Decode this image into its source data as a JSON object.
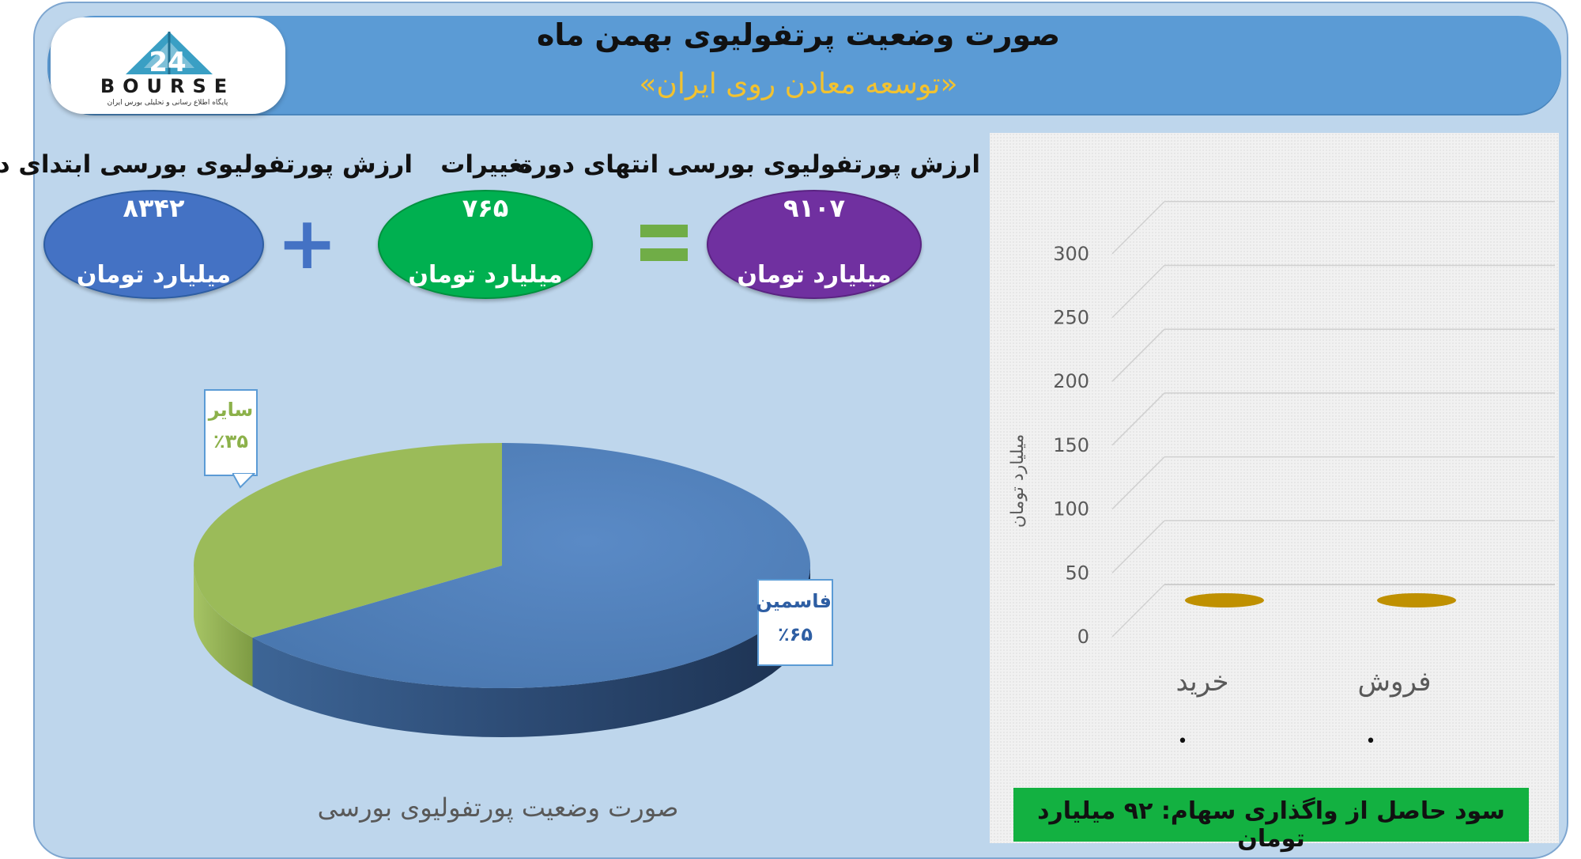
{
  "header": {
    "title": "صورت وضعیت پرتفولیوی بهمن ماه",
    "subtitle": "«توسعه معادن روی ایران»",
    "logo_text": "BOURSE",
    "logo_tagline": "پایگاه اطلاع رسانی و تحلیلی بورس ایران"
  },
  "summary": {
    "start_label": "ارزش پورتفولیوی بورسی ابتدای دوره",
    "start_value": "۸۳۴۲",
    "change_label": "تغییرات",
    "change_value": "۷۶۵",
    "end_label": "ارزش پورتفولیوی بورسی انتهای دوره",
    "end_value": "۹۱۰۷",
    "unit": "میلیارد تومان",
    "plus_symbol": "+",
    "equals_symbol": "=",
    "colors": {
      "start": "#4472c4",
      "change": "#00b050",
      "end": "#7030a0",
      "plus": "#4472c4",
      "equals": "#70ad47"
    }
  },
  "pie": {
    "caption": "صورت وضعیت پورتفولیوی بورسی",
    "slices": [
      {
        "label": "فاسمین",
        "percent_text": "٪۶۵",
        "value": 65,
        "color": "#4f81bd",
        "label_color": "#2e5ea3"
      },
      {
        "label": "سایر",
        "percent_text": "٪۳۵",
        "value": 35,
        "color": "#9bbb59",
        "label_color": "#8cb14a"
      }
    ]
  },
  "chart_data": [
    {
      "type": "pie",
      "title": "صورت وضعیت پورتفولیوی بورسی",
      "categories": [
        "فاسمین",
        "سایر"
      ],
      "values": [
        65,
        35
      ],
      "unit": "%"
    },
    {
      "type": "bar",
      "categories": [
        "خرید",
        "فروش"
      ],
      "values": [
        0,
        0
      ],
      "ylabel": "میلیارد تومان",
      "yticks": [
        "0",
        "50",
        "100",
        "150",
        "200",
        "250",
        "300"
      ],
      "ylim": [
        0,
        300
      ],
      "grid": true,
      "bar_color": "#bf9000"
    }
  ],
  "bar_chart": {
    "ylabel": "میلیارد تومان",
    "yticks": [
      "0",
      "50",
      "100",
      "150",
      "200",
      "250",
      "300"
    ],
    "categories": [
      "خرید",
      "فروش"
    ],
    "point_labels": [
      "•",
      "•"
    ]
  },
  "profit": {
    "text": "سود حاصل از واگذاری سهام: ۹۲ میلیارد تومان"
  }
}
